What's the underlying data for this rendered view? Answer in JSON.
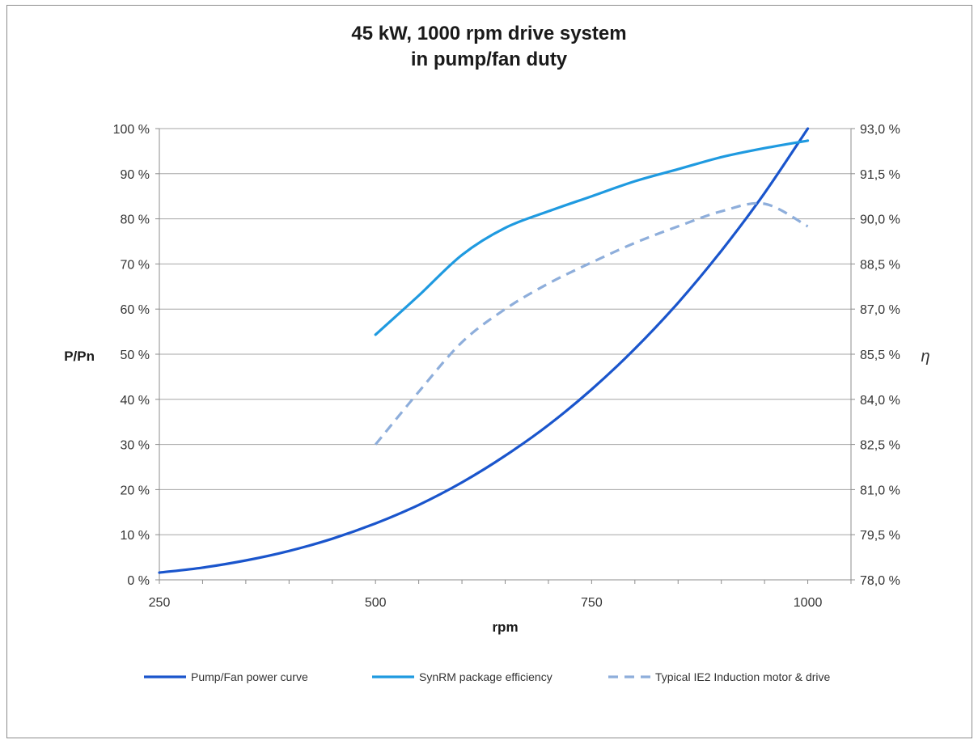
{
  "chart_data": {
    "type": "line",
    "title": [
      "45 kW, 1000 rpm drive system",
      "in pump/fan duty"
    ],
    "xlabel": "rpm",
    "ylabel": "P/Pn",
    "y2label": "η",
    "xlim": [
      250,
      1050
    ],
    "xticks": [
      "250",
      "500",
      "750",
      "1000"
    ],
    "xtick_values": [
      250,
      500,
      750,
      1000
    ],
    "ylim": [
      0,
      100
    ],
    "yticks": [
      "0 %",
      "10 %",
      "20 %",
      "30 %",
      "40 %",
      "50 %",
      "60 %",
      "70 %",
      "80 %",
      "90 %",
      "100 %"
    ],
    "ytick_values": [
      0,
      10,
      20,
      30,
      40,
      50,
      60,
      70,
      80,
      90,
      100
    ],
    "y2lim": [
      78.0,
      93.0
    ],
    "y2ticks": [
      "78,0 %",
      "79,5 %",
      "81,0 %",
      "82,5 %",
      "84,0 %",
      "85,5 %",
      "87,0 %",
      "88,5 %",
      "90,0 %",
      "91,5 %",
      "93,0 %"
    ],
    "y2tick_values": [
      78.0,
      79.5,
      81.0,
      82.5,
      84.0,
      85.5,
      87.0,
      88.5,
      90.0,
      91.5,
      93.0
    ],
    "grid": "horizontal",
    "legend_position": "bottom",
    "series": [
      {
        "name": "Pump/Fan power curve",
        "axis": "left",
        "color": "#1a55cc",
        "dash": "solid",
        "x": [
          250,
          300,
          350,
          400,
          450,
          500,
          550,
          600,
          650,
          700,
          750,
          800,
          850,
          900,
          950,
          1000
        ],
        "y": [
          1.6,
          2.7,
          4.3,
          6.4,
          9.1,
          12.5,
          16.6,
          21.6,
          27.5,
          34.3,
          42.2,
          51.2,
          61.4,
          72.9,
          85.7,
          100.0
        ]
      },
      {
        "name": "SynRM package efficiency",
        "axis": "right",
        "color": "#1f9ae0",
        "dash": "solid",
        "x": [
          500,
          550,
          600,
          650,
          700,
          750,
          800,
          850,
          900,
          950,
          1000
        ],
        "y": [
          86.15,
          87.45,
          88.8,
          89.7,
          90.25,
          90.75,
          91.25,
          91.65,
          92.05,
          92.35,
          92.6
        ]
      },
      {
        "name": "Typical IE2 Induction motor & drive",
        "axis": "right",
        "color": "#8eaedb",
        "dash": "dashed",
        "x": [
          500,
          550,
          600,
          650,
          700,
          750,
          800,
          850,
          900,
          950,
          1000
        ],
        "y": [
          82.5,
          84.25,
          85.9,
          87.0,
          87.85,
          88.55,
          89.2,
          89.75,
          90.25,
          90.5,
          89.75
        ]
      }
    ]
  }
}
